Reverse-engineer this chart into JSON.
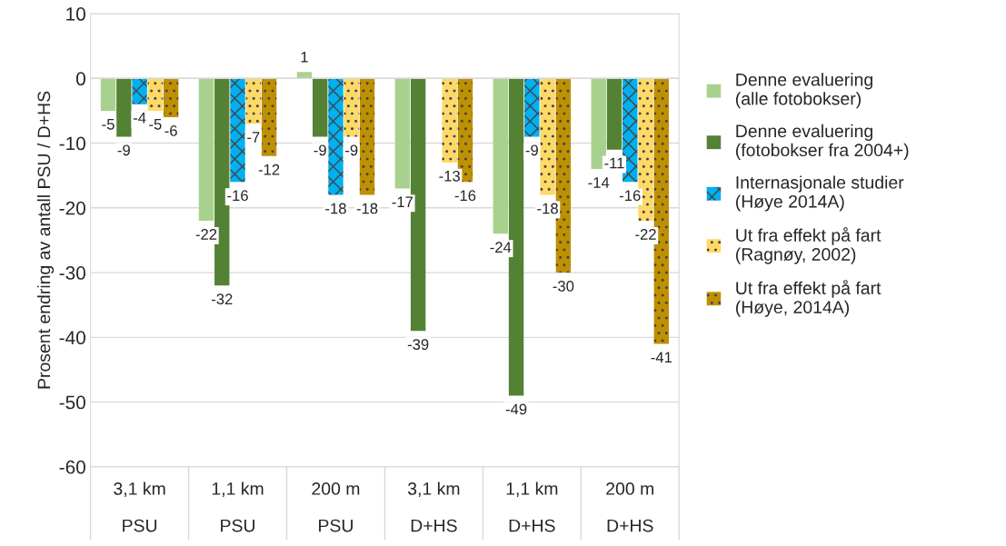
{
  "chart_data": {
    "type": "bar",
    "ylabel": "Prosent endring av antall PSU / D+HS",
    "categories": [
      "3,1 km\nPSU",
      "1,1 km\nPSU",
      "200 m\nPSU",
      "3,1 km\nD+HS",
      "1,1 km\nD+HS",
      "200 m\nD+HS"
    ],
    "series": [
      {
        "name": "Denne evaluering\n(alle fotobokser)",
        "color": "#a9d18e",
        "values": [
          -5,
          -22,
          1,
          -17,
          -24,
          -14
        ]
      },
      {
        "name": "Denne evaluering\n(fotobokser fra 2004+)",
        "color": "#548235",
        "values": [
          -9,
          -32,
          -9,
          -39,
          -49,
          -11
        ]
      },
      {
        "name": "Internasjonale studier\n(Høye 2014A)",
        "color": "#00b0f0",
        "values": [
          -4,
          -16,
          -18,
          null,
          -9,
          -16
        ]
      },
      {
        "name": "Ut fra effekt på fart\n(Ragnøy, 2002)",
        "color": "#ffd966",
        "values": [
          -5,
          -7,
          -9,
          -13,
          -18,
          -22
        ]
      },
      {
        "name": "Ut fra effekt på fart\n(Høye, 2014A)",
        "color": "#bf9000",
        "values": [
          -6,
          -12,
          -18,
          -16,
          -30,
          -41
        ]
      }
    ],
    "ylim": [
      -60,
      10
    ],
    "yticks": [
      -60,
      -50,
      -40,
      -30,
      -20,
      -10,
      0,
      10
    ],
    "grid": "y",
    "legend": "right",
    "data_labels": true
  }
}
